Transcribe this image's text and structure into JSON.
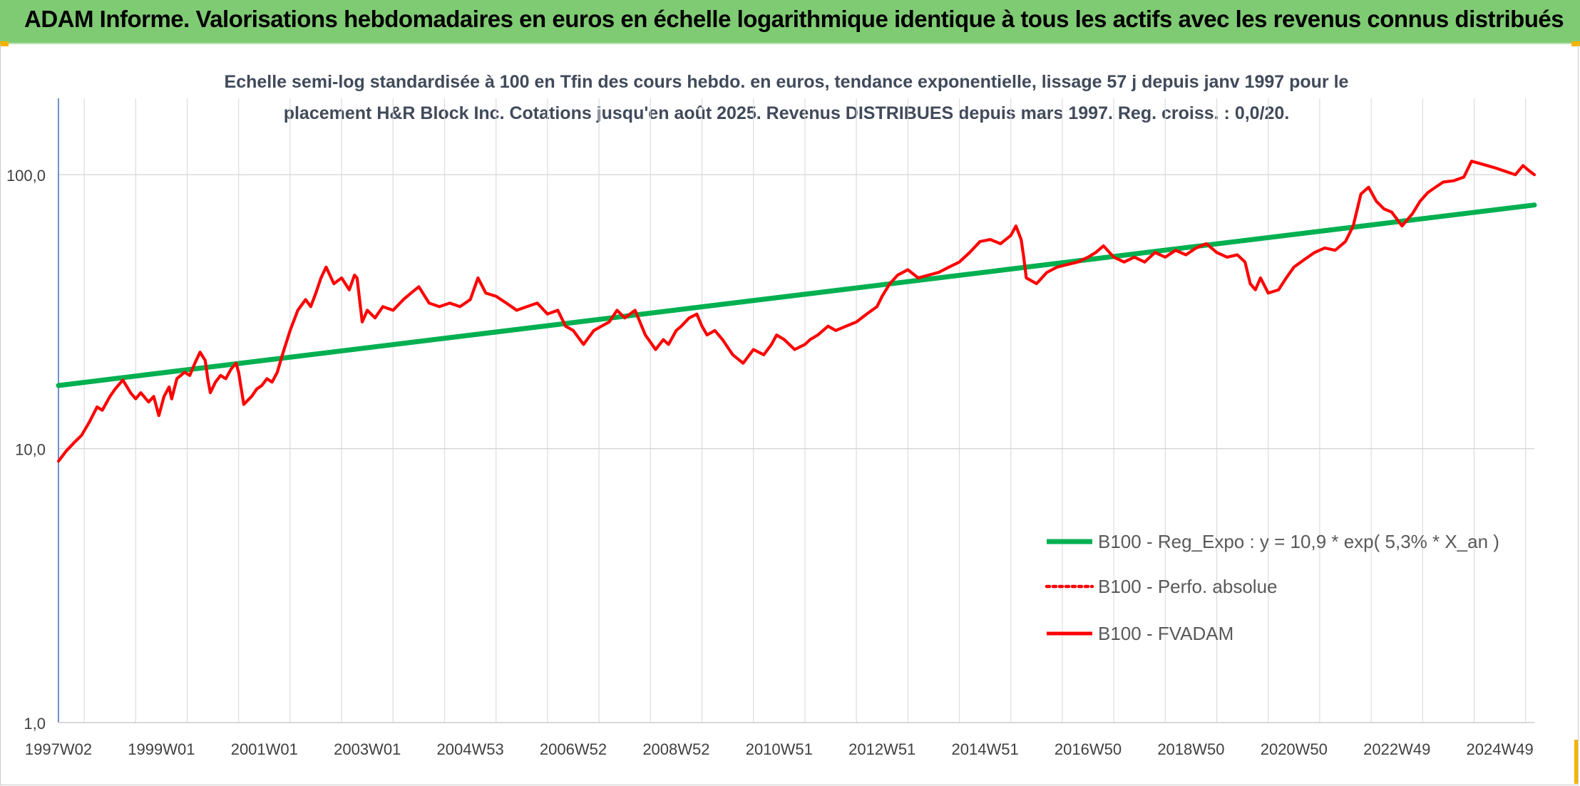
{
  "banner": {
    "title": "ADAM Informe. Valorisations hebdomadaires en euros en échelle logarithmique identique à tous les actifs avec les revenus connus distribués",
    "color": "#7fcb73"
  },
  "chart_data": {
    "type": "line",
    "title_lines": [
      "Echelle semi-log standardisée à 100 en Tfin des cours hebdo. en euros, tendance exponentielle, lissage 57 j depuis janv 1997 pour le",
      "placement H&R Block Inc. Cotations jusqu'en août 2025. Revenus DISTRIBUES depuis mars 1997. Reg. croiss. : 0,0/20."
    ],
    "y_scale": "log",
    "ylim": [
      1,
      190
    ],
    "y_ticks": [
      {
        "value": 1,
        "label": "1,0"
      },
      {
        "value": 10,
        "label": "10,0"
      },
      {
        "value": 100,
        "label": "100,0"
      }
    ],
    "xlim": [
      1997.0,
      2025.67
    ],
    "x_ticks": [
      {
        "value": 1997.0,
        "label": "1997W02"
      },
      {
        "value": 1999.0,
        "label": "1999W01"
      },
      {
        "value": 2001.0,
        "label": "2001W01"
      },
      {
        "value": 2003.0,
        "label": "2003W01"
      },
      {
        "value": 2005.0,
        "label": "2004W53"
      },
      {
        "value": 2007.0,
        "label": "2006W52"
      },
      {
        "value": 2009.0,
        "label": "2008W52"
      },
      {
        "value": 2011.0,
        "label": "2010W51"
      },
      {
        "value": 2013.0,
        "label": "2012W51"
      },
      {
        "value": 2015.0,
        "label": "2014W51"
      },
      {
        "value": 2017.0,
        "label": "2016W50"
      },
      {
        "value": 2019.0,
        "label": "2018W50"
      },
      {
        "value": 2021.0,
        "label": "2020W50"
      },
      {
        "value": 2023.0,
        "label": "2022W49"
      },
      {
        "value": 2025.0,
        "label": "2024W49"
      }
    ],
    "grid": true,
    "legend_position": "bottom-right",
    "series": [
      {
        "name": "B100 - Reg_Expo : y = 10,9 * exp( 5,3% *  X_an )",
        "color": "#00b050",
        "style": "solid",
        "x": [
          1997.0,
          2025.67
        ],
        "y": [
          17.0,
          77.5
        ]
      },
      {
        "name": "B100 - Perfo. absolue",
        "color": "#ff0000",
        "style": "dotted",
        "x": [],
        "y": []
      },
      {
        "name": "B100 - FVADAM",
        "color": "#ff0000",
        "style": "solid",
        "x": [
          1997.0,
          1997.15,
          1997.3,
          1997.45,
          1997.6,
          1997.75,
          1997.85,
          1998.0,
          1998.1,
          1998.25,
          1998.4,
          1998.5,
          1998.6,
          1998.75,
          1998.85,
          1998.95,
          1999.05,
          1999.15,
          1999.2,
          1999.3,
          1999.45,
          1999.55,
          1999.65,
          1999.75,
          1999.85,
          1999.9,
          1999.95,
          2000.05,
          2000.15,
          2000.25,
          2000.35,
          2000.45,
          2000.5,
          2000.6,
          2000.75,
          2000.85,
          2000.95,
          2001.05,
          2001.15,
          2001.25,
          2001.35,
          2001.5,
          2001.65,
          2001.8,
          2001.9,
          2002.0,
          2002.1,
          2002.2,
          2002.35,
          2002.5,
          2002.65,
          2002.75,
          2002.8,
          2002.9,
          2003.0,
          2003.15,
          2003.3,
          2003.5,
          2003.7,
          2003.85,
          2004.0,
          2004.2,
          2004.4,
          2004.6,
          2004.8,
          2005.0,
          2005.15,
          2005.3,
          2005.5,
          2005.7,
          2005.9,
          2006.1,
          2006.3,
          2006.5,
          2006.7,
          2006.85,
          2007.0,
          2007.2,
          2007.4,
          2007.55,
          2007.7,
          2007.85,
          2008.0,
          2008.2,
          2008.4,
          2008.6,
          2008.75,
          2008.85,
          2009.0,
          2009.1,
          2009.25,
          2009.4,
          2009.5,
          2009.6,
          2009.75,
          2009.9,
          2010.1,
          2010.3,
          2010.5,
          2010.7,
          2010.85,
          2010.95,
          2011.1,
          2011.3,
          2011.5,
          2011.6,
          2011.75,
          2011.95,
          2012.1,
          2012.3,
          2012.5,
          2012.7,
          2012.9,
          2013.0,
          2013.15,
          2013.3,
          2013.5,
          2013.7,
          2013.9,
          2014.1,
          2014.3,
          2014.5,
          2014.7,
          2014.9,
          2015.1,
          2015.3,
          2015.5,
          2015.6,
          2015.7,
          2015.75,
          2015.8,
          2016.0,
          2016.2,
          2016.4,
          2016.6,
          2016.8,
          2017.0,
          2017.15,
          2017.3,
          2017.5,
          2017.7,
          2017.9,
          2018.1,
          2018.3,
          2018.5,
          2018.7,
          2018.9,
          2019.1,
          2019.3,
          2019.5,
          2019.7,
          2019.9,
          2020.05,
          2020.15,
          2020.25,
          2020.35,
          2020.5,
          2020.7,
          2020.85,
          2021.0,
          2021.2,
          2021.4,
          2021.6,
          2021.8,
          2022.0,
          2022.15,
          2022.3,
          2022.45,
          2022.6,
          2022.75,
          2022.9,
          2023.1,
          2023.3,
          2023.45,
          2023.6,
          2023.75,
          2023.9,
          2024.1,
          2024.3,
          2024.45,
          2024.6,
          2024.75,
          2024.9,
          2025.1,
          2025.3,
          2025.45,
          2025.55,
          2025.67
        ],
        "y": [
          9.0,
          9.8,
          10.5,
          11.2,
          12.5,
          14.2,
          13.8,
          15.5,
          16.5,
          17.8,
          16.0,
          15.2,
          16.0,
          14.8,
          15.5,
          13.2,
          15.5,
          16.8,
          15.2,
          18.0,
          19.0,
          18.5,
          20.5,
          22.5,
          21.0,
          18.0,
          16.0,
          17.5,
          18.5,
          18.0,
          19.5,
          20.5,
          19.0,
          14.5,
          15.5,
          16.5,
          17.0,
          18.0,
          17.5,
          19.0,
          22.0,
          27.0,
          32.0,
          35.0,
          33.0,
          37.0,
          42.0,
          46.0,
          40.0,
          42.0,
          38.0,
          43.0,
          42.0,
          29.0,
          32.0,
          30.0,
          33.0,
          32.0,
          35.0,
          37.0,
          39.0,
          34.0,
          33.0,
          34.0,
          33.0,
          35.0,
          42.0,
          37.0,
          36.0,
          34.0,
          32.0,
          33.0,
          34.0,
          31.0,
          32.0,
          28.0,
          27.0,
          24.0,
          27.0,
          28.0,
          29.0,
          32.0,
          30.0,
          32.0,
          26.0,
          23.0,
          25.0,
          24.0,
          27.0,
          28.0,
          30.0,
          31.0,
          28.0,
          26.0,
          27.0,
          25.0,
          22.0,
          20.5,
          23.0,
          22.0,
          24.0,
          26.0,
          25.0,
          23.0,
          24.0,
          25.0,
          26.0,
          28.0,
          27.0,
          28.0,
          29.0,
          31.0,
          33.0,
          36.0,
          40.0,
          43.0,
          45.0,
          42.0,
          43.0,
          44.0,
          46.0,
          48.0,
          52.0,
          57.0,
          58.0,
          56.0,
          60.0,
          65.0,
          58.0,
          50.0,
          42.0,
          40.0,
          44.0,
          46.0,
          47.0,
          48.0,
          50.0,
          52.0,
          55.0,
          50.0,
          48.0,
          50.0,
          48.0,
          52.0,
          50.0,
          53.0,
          51.0,
          54.0,
          56.0,
          52.0,
          50.0,
          51.0,
          48.0,
          40.0,
          38.0,
          42.0,
          37.0,
          38.0,
          42.0,
          46.0,
          49.0,
          52.0,
          54.0,
          53.0,
          57.0,
          65.0,
          85.0,
          90.0,
          80.0,
          75.0,
          73.0,
          65.0,
          72.0,
          80.0,
          86.0,
          90.0,
          94.0,
          95.0,
          98.0,
          112.0,
          110.0,
          108.0,
          106.0,
          103.0,
          100.0,
          108.0,
          104.0,
          100.0
        ]
      }
    ]
  }
}
